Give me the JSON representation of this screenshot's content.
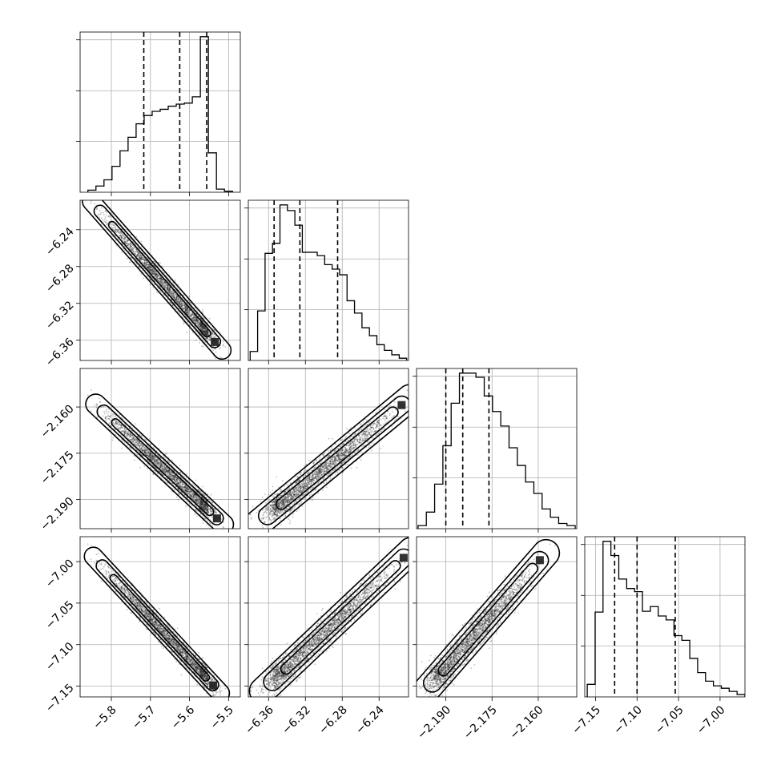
{
  "chart_data": {
    "type": "corner",
    "grid": true,
    "parameters": [
      {
        "range": [
          -5.88,
          -5.47
        ],
        "ticks": [
          -5.8,
          -5.7,
          -5.6,
          -5.5
        ],
        "tick_labels": [
          "−5.8",
          "−5.7",
          "−5.6",
          "−5.5"
        ]
      },
      {
        "range": [
          -6.382,
          -6.208
        ],
        "ticks": [
          -6.36,
          -6.32,
          -6.28,
          -6.24
        ],
        "tick_labels": [
          "−6.36",
          "−6.32",
          "−6.28",
          "−6.24"
        ]
      },
      {
        "range": [
          -2.1995,
          -2.1475
        ],
        "ticks": [
          -2.19,
          -2.175,
          -2.16
        ],
        "tick_labels": [
          "−2.190",
          "−2.175",
          "−2.160"
        ]
      },
      {
        "range": [
          -7.163,
          -6.97
        ],
        "ticks": [
          -7.15,
          -7.1,
          -7.05,
          -7.0
        ],
        "tick_labels": [
          "−7.15",
          "−7.10",
          "−7.05",
          "−7.00"
        ]
      }
    ],
    "quantiles": [
      [
        -5.717,
        -5.625,
        -5.556
      ],
      [
        -6.354,
        -6.326,
        -6.285
      ],
      [
        -2.19,
        -2.1845,
        -2.176
      ],
      [
        -7.127,
        -7.1,
        -7.054
      ]
    ],
    "histograms": [
      {
        "edges_range": [
          -5.86,
          -5.49
        ],
        "counts": [
          2,
          6,
          12,
          25,
          40,
          53,
          66,
          74,
          78,
          80,
          83,
          85,
          86,
          92,
          150,
          38,
          3,
          1
        ]
      },
      {
        "edges_range": [
          -6.38,
          -6.21
        ],
        "counts": [
          8,
          44,
          95,
          104,
          138,
          133,
          120,
          96,
          96,
          93,
          85,
          81,
          76,
          53,
          42,
          29,
          22,
          14,
          9,
          5,
          2
        ]
      },
      {
        "edges_range": [
          -2.199,
          -2.148
        ],
        "counts": [
          3,
          16,
          43,
          80,
          121,
          150,
          150,
          146,
          128,
          113,
          99,
          78,
          61,
          45,
          34,
          19,
          11,
          5,
          3
        ]
      },
      {
        "edges_range": [
          -7.16,
          -6.97
        ],
        "counts": [
          16,
          108,
          198,
          180,
          150,
          138,
          134,
          109,
          115,
          103,
          98,
          78,
          72,
          49,
          31,
          20,
          14,
          11,
          7,
          3
        ]
      }
    ],
    "linear_fits": {
      "1_0": [
        -0.475,
        -8.99
      ],
      "2_0": [
        -0.1165,
        -2.84
      ],
      "3_0": [
        -0.495,
        -9.89
      ],
      "2_1": [
        0.238,
        -0.6675
      ],
      "3_1": [
        1.038,
        -0.539
      ],
      "3_2": [
        4.325,
        2.351
      ]
    },
    "scatter_scale": [
      0.085,
      0.035,
      0.0105,
      0.038
    ]
  }
}
